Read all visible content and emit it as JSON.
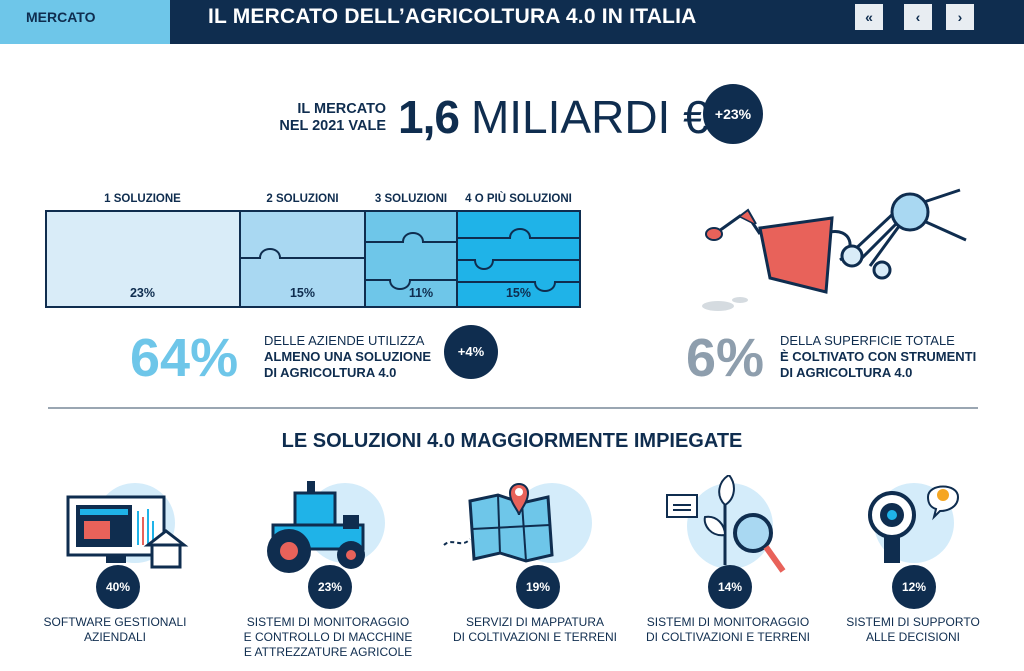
{
  "header": {
    "tab": "MERCATO",
    "title": "IL MERCATO DELL’AGRICOLTURA 4.0 IN ITALIA",
    "nav": {
      "first": "«",
      "prev": "‹",
      "next": "›"
    }
  },
  "market": {
    "label_line1": "IL MERCATO",
    "label_line2": "NEL 2021 VALE",
    "value": "1,6",
    "unit": "MILIARDI €",
    "growth": "+23%"
  },
  "solutions_split": {
    "headers": [
      "1 SOLUZIONE",
      "2 SOLUZIONI",
      "3 SOLUZIONI",
      "4 O PIÙ SOLUZIONI"
    ],
    "values": [
      "23%",
      "15%",
      "11%",
      "15%"
    ],
    "colors": [
      "#d9ecf8",
      "#a9d8f2",
      "#6ec6e9",
      "#1fb3e8"
    ]
  },
  "companies": {
    "percent": "64%",
    "line1": "DELLE AZIENDE UTILIZZA",
    "line2": "ALMENO UNA SOLUZIONE",
    "line3": "DI AGRICOLTURA 4.0",
    "growth": "+4%"
  },
  "surface": {
    "percent": "6%",
    "line1": "DELLA SUPERFICIE TOTALE",
    "line2": "È COLTIVATO CON STRUMENTI",
    "line3": "DI AGRICOLTURA 4.0"
  },
  "top_solutions": {
    "title": "LE SOLUZIONI 4.0 MAGGIORMENTE IMPIEGATE",
    "items": [
      {
        "percent": "40%",
        "line1": "SOFTWARE GESTIONALI",
        "line2": "AZIENDALI",
        "line3": "",
        "icon": "software-monitor-icon"
      },
      {
        "percent": "23%",
        "line1": "SISTEMI DI MONITORAGGIO",
        "line2": "E CONTROLLO DI MACCHINE",
        "line3": "E ATTREZZATURE AGRICOLE",
        "icon": "tractor-icon"
      },
      {
        "percent": "19%",
        "line1": "SERVIZI DI MAPPATURA",
        "line2": "DI COLTIVAZIONI E TERRENI",
        "line3": "",
        "icon": "map-pin-icon"
      },
      {
        "percent": "14%",
        "line1": "SISTEMI DI MONITORAGGIO",
        "line2": "DI COLTIVAZIONI E TERRENI",
        "line3": "",
        "icon": "plant-magnifier-icon"
      },
      {
        "percent": "12%",
        "line1": "SISTEMI DI SUPPORTO",
        "line2": "ALLE DECISIONI",
        "line3": "",
        "icon": "decision-lightbulb-icon"
      }
    ]
  },
  "colors": {
    "navy": "#0f2d4f",
    "light_blue": "#6ec6e9",
    "grey": "#8e9ead",
    "coral": "#e8625a"
  }
}
